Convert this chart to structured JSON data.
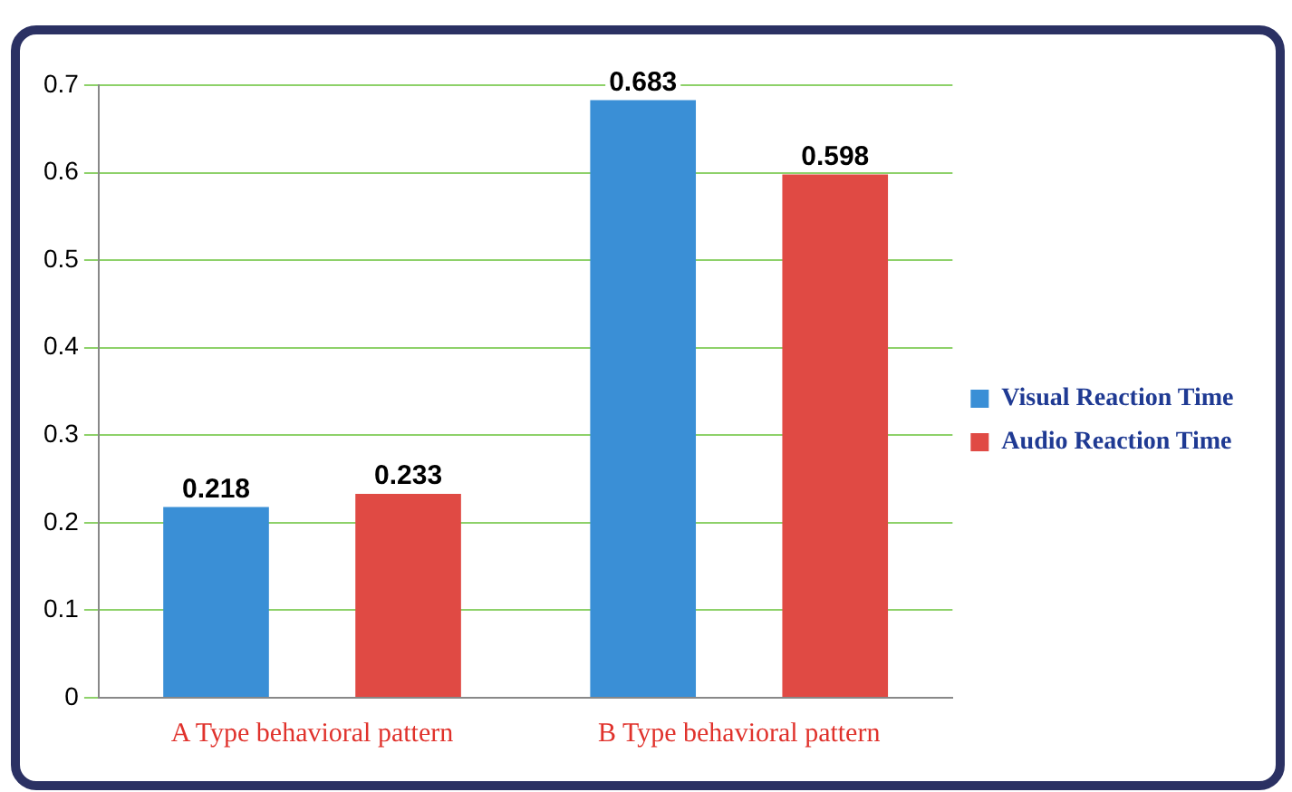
{
  "chart_data": {
    "type": "bar",
    "categories": [
      "A Type behavioral pattern",
      "B Type behavioral pattern"
    ],
    "series": [
      {
        "name": "Visual Reaction Time",
        "color": "#3a8fd6",
        "values": [
          0.218,
          0.683
        ]
      },
      {
        "name": "Audio Reaction Time",
        "color": "#e04a44",
        "values": [
          0.233,
          0.598
        ]
      }
    ],
    "ylim": [
      0,
      0.7
    ],
    "yticks": [
      0,
      0.1,
      0.2,
      0.3,
      0.4,
      0.5,
      0.6,
      0.7
    ],
    "grid": "y",
    "legend": "right",
    "data_labels": true
  }
}
